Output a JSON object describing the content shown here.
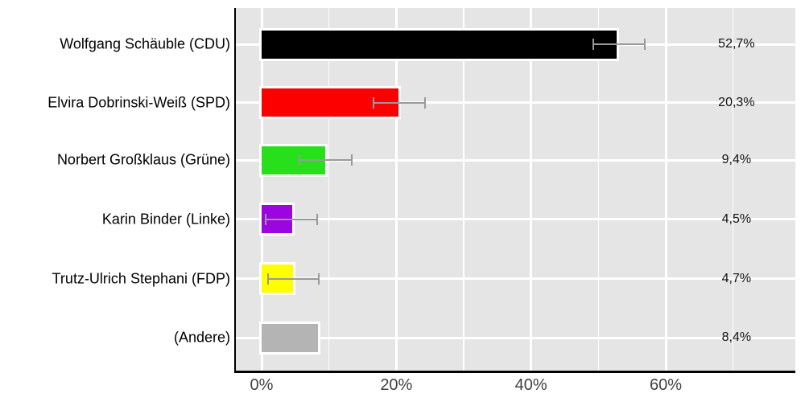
{
  "chart_data": {
    "type": "bar",
    "orientation": "horizontal",
    "rows": [
      {
        "key": "cdu",
        "label": "Wolfgang Schäuble (CDU)",
        "value": 52.7,
        "value_label": "52,7%",
        "color": "#000000",
        "ci_low": 49.2,
        "ci_high": 56.9
      },
      {
        "key": "spd",
        "label": "Elvira Dobrinski-Weiß (SPD)",
        "value": 20.3,
        "value_label": "20,3%",
        "color": "#FC0000",
        "ci_low": 16.6,
        "ci_high": 24.3
      },
      {
        "key": "gruene",
        "label": "Norbert Großklaus (Grüne)",
        "value": 9.4,
        "value_label": "9,4%",
        "color": "#27E01B",
        "ci_low": 5.6,
        "ci_high": 13.4
      },
      {
        "key": "linke",
        "label": "Karin Binder (Linke)",
        "value": 4.5,
        "value_label": "4,5%",
        "color": "#9A05E0",
        "ci_low": 0.6,
        "ci_high": 8.3
      },
      {
        "key": "fdp",
        "label": "Trutz-Ulrich Stephani (FDP)",
        "value": 4.7,
        "value_label": "4,7%",
        "color": "#FFFF00",
        "ci_low": 1.0,
        "ci_high": 8.5
      },
      {
        "key": "andere",
        "label": "(Andere)",
        "value": 8.4,
        "value_label": "8,4%",
        "color": "#B4B4B4",
        "ci_low": null,
        "ci_high": null
      }
    ],
    "x_axis": {
      "unit": "%",
      "range": [
        -3.8,
        79.3
      ],
      "major_ticks": [
        0,
        20,
        40,
        60
      ],
      "tick_labels": [
        "0%",
        "20%",
        "40%",
        "60%"
      ],
      "minor_ticks": [
        10,
        30,
        50,
        70
      ]
    },
    "legend": "none",
    "grid": {
      "vertical": "major and minor, white",
      "horizontal": "major at each category center, white"
    },
    "styles": {
      "panel_background": "#E5E5E5",
      "gridline_color": "#FFFFFF",
      "axis_line_color": "#000000",
      "tick_label_color": "#404040",
      "category_label_color": "#000000",
      "value_label_color": "#111111",
      "errorbar_color": "#999999",
      "bar_outline_color": "#FFFFFF"
    }
  }
}
